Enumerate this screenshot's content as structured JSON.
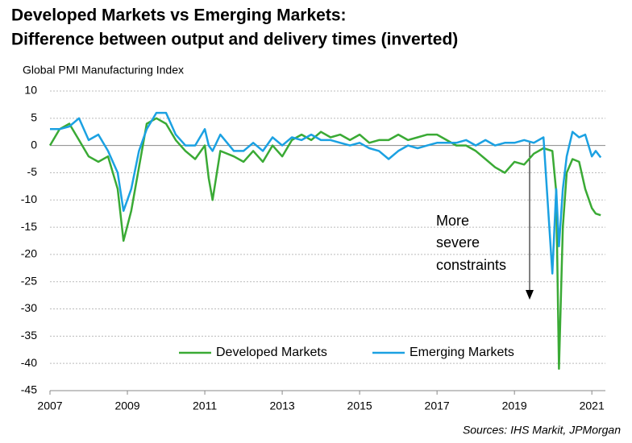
{
  "chart_data": {
    "type": "line",
    "title": [
      "Developed Markets vs Emerging Markets:",
      "Difference between output and delivery times (inverted)"
    ],
    "y_axis_label": "Global PMI Manufacturing Index",
    "source": "Sources: IHS Markit, JPMorgan",
    "annotation": [
      "More",
      "severe",
      "constraints"
    ],
    "x": [
      2007.0,
      2007.25,
      2007.5,
      2007.75,
      2008.0,
      2008.25,
      2008.5,
      2008.75,
      2008.9,
      2009.1,
      2009.3,
      2009.5,
      2009.75,
      2010.0,
      2010.25,
      2010.5,
      2010.75,
      2011.0,
      2011.1,
      2011.2,
      2011.4,
      2011.75,
      2012.0,
      2012.25,
      2012.5,
      2012.75,
      2013.0,
      2013.25,
      2013.5,
      2013.75,
      2014.0,
      2014.25,
      2014.5,
      2014.75,
      2015.0,
      2015.25,
      2015.5,
      2015.75,
      2016.0,
      2016.25,
      2016.5,
      2016.75,
      2017.0,
      2017.25,
      2017.5,
      2017.75,
      2018.0,
      2018.25,
      2018.5,
      2018.75,
      2019.0,
      2019.25,
      2019.5,
      2019.75,
      2019.98,
      2020.08,
      2020.15,
      2020.25,
      2020.35,
      2020.5,
      2020.67,
      2020.83,
      2021.0,
      2021.1,
      2021.23
    ],
    "series": [
      {
        "name": "Developed Markets",
        "color": "#3aaa35",
        "values": [
          0,
          3,
          4,
          1,
          -2,
          -3,
          -2,
          -8,
          -17.5,
          -12,
          -4,
          4,
          5,
          4,
          1,
          -1,
          -2.5,
          0,
          -6,
          -10,
          -1,
          -2,
          -3,
          -1,
          -3,
          0,
          -2,
          1,
          2,
          1,
          2.5,
          1.5,
          2,
          1,
          2,
          0.5,
          1,
          1,
          2,
          1,
          1.5,
          2,
          2,
          1,
          0,
          0,
          -1,
          -2.5,
          -4,
          -5,
          -3,
          -3.5,
          -1.5,
          -0.5,
          -1,
          -8.5,
          -41,
          -15,
          -5,
          -2.5,
          -3,
          -8,
          -11.5,
          -12.5,
          -12.8
        ]
      },
      {
        "name": "Emerging Markets",
        "color": "#1ba1e2",
        "values": [
          3,
          3,
          3.5,
          5,
          1,
          2,
          -1,
          -5,
          -12,
          -8,
          -1,
          3,
          6,
          6,
          2,
          0,
          0,
          3,
          0,
          -1,
          2,
          -1,
          -1,
          0.5,
          -1,
          1.5,
          0,
          1.5,
          1,
          2,
          1,
          1,
          0.5,
          0,
          0.5,
          -0.5,
          -1,
          -2.5,
          -1,
          0,
          -0.5,
          0,
          0.5,
          0.5,
          0.5,
          1,
          0,
          1,
          0,
          0.5,
          0.5,
          1,
          0.5,
          1.5,
          -23.5,
          -8,
          -18.5,
          -8,
          -2,
          2.5,
          1.5,
          2,
          -2,
          -1,
          -2.2
        ]
      }
    ],
    "xlim": [
      2007,
      2021.35
    ],
    "xticks": [
      2007,
      2009,
      2011,
      2013,
      2015,
      2017,
      2019,
      2021
    ],
    "ylim": [
      -45,
      10
    ],
    "yticks": [
      10,
      5,
      0,
      -5,
      -10,
      -15,
      -20,
      -25,
      -30,
      -35,
      -40,
      -45
    ],
    "grid": true,
    "legend": "lower-center"
  }
}
